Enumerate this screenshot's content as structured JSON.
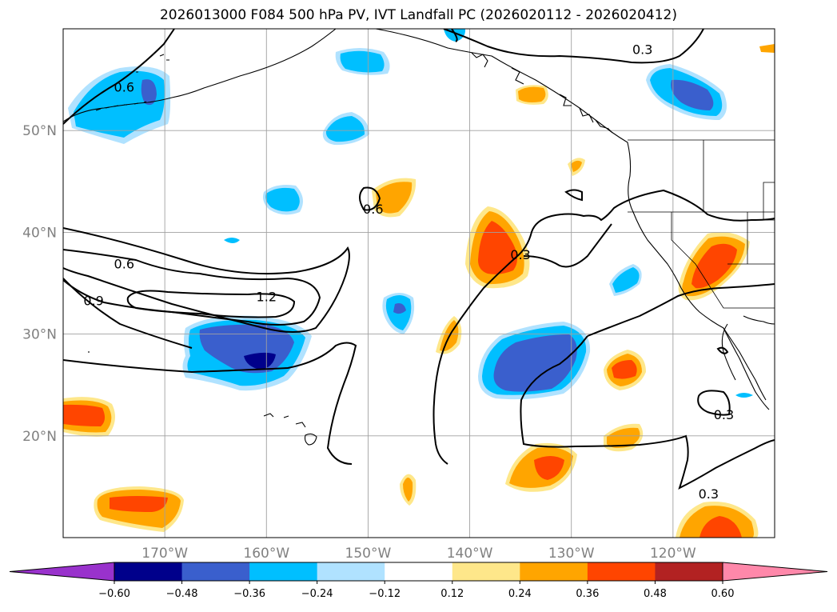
{
  "title": "2026013000 F084 500 hPa PV, IVT Landfall PC (2026020112 - 2026020412)",
  "map": {
    "projection": "PlateCarree",
    "extent": {
      "lon_min": -180,
      "lon_max": -110,
      "lat_min": 10,
      "lat_max": 60
    },
    "grid": true,
    "lat_ticks": [
      {
        "value": 20,
        "label": "20°N"
      },
      {
        "value": 30,
        "label": "30°N"
      },
      {
        "value": 40,
        "label": "40°N"
      },
      {
        "value": 50,
        "label": "50°N"
      }
    ],
    "lon_ticks": [
      {
        "value": -170,
        "label": "170°W"
      },
      {
        "value": -160,
        "label": "160°W"
      },
      {
        "value": -150,
        "label": "150°W"
      },
      {
        "value": -140,
        "label": "140°W"
      },
      {
        "value": -130,
        "label": "130°W"
      },
      {
        "value": -120,
        "label": "120°W"
      }
    ],
    "contour_labels": [
      {
        "text": "0.6",
        "lon": -174,
        "lat": 54
      },
      {
        "text": "0.3",
        "lon": -123,
        "lat": 57.7
      },
      {
        "text": "0.6",
        "lon": -149.5,
        "lat": 42
      },
      {
        "text": "0.6",
        "lon": -174,
        "lat": 36.6
      },
      {
        "text": "0.3",
        "lon": -135,
        "lat": 37.5
      },
      {
        "text": "1.2",
        "lon": -160,
        "lat": 33.4
      },
      {
        "text": "0.9",
        "lon": -177,
        "lat": 33
      },
      {
        "text": "0.3",
        "lon": -115,
        "lat": 21.8
      },
      {
        "text": "0.3",
        "lon": -116.5,
        "lat": 14
      }
    ]
  },
  "colorbar": {
    "extend": "both",
    "ticks": [
      "−0.60",
      "−0.48",
      "−0.36",
      "−0.24",
      "−0.12",
      "0.12",
      "0.24",
      "0.36",
      "0.48",
      "0.60"
    ],
    "colors": {
      "under": "#9932cc",
      "bins": [
        "#00008b",
        "#3a5fcd",
        "#00bfff",
        "#b0e2ff",
        "#ffffff",
        "#fee78a",
        "#ffa500",
        "#ff4500",
        "#b22222"
      ],
      "over": "#ff88aa"
    }
  }
}
